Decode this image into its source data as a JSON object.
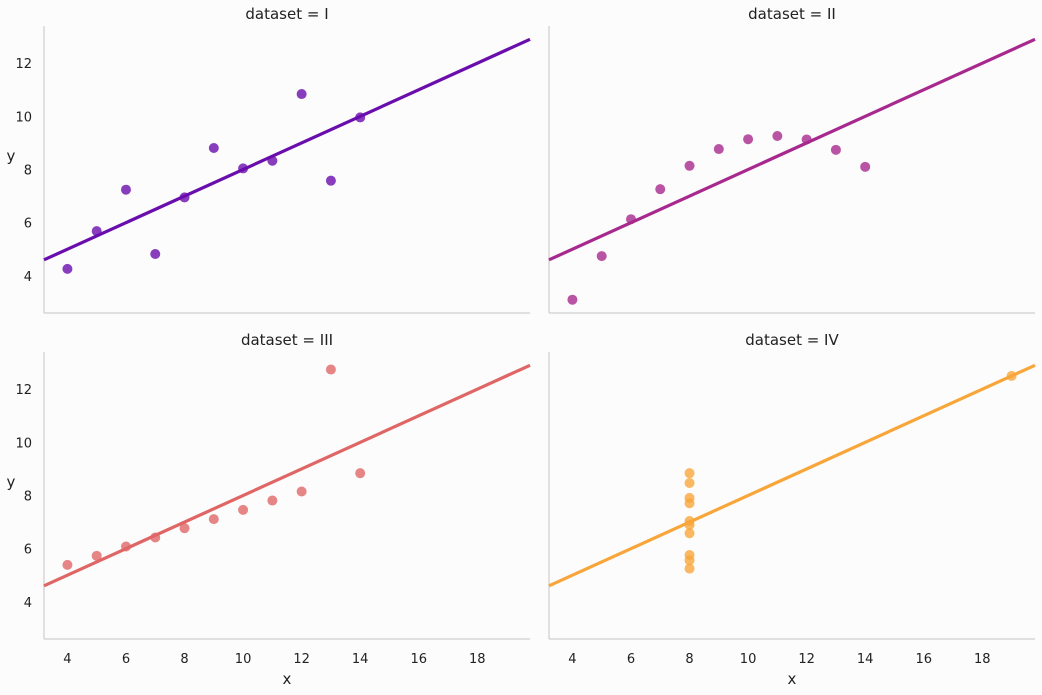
{
  "chart_data": {
    "type": "scatter",
    "layout": "2x2 facet grid with shared axes and linear regression line per panel",
    "xlabel": "x",
    "ylabel": "y",
    "xlim": [
      3.2,
      19.8
    ],
    "ylim": [
      2.6,
      13.4
    ],
    "xticks": [
      4,
      6,
      8,
      10,
      12,
      14,
      16,
      18
    ],
    "yticks": [
      4,
      6,
      8,
      10,
      12
    ],
    "grid": false,
    "regression": {
      "intercept": 3.0,
      "slope": 0.5
    },
    "panels": [
      {
        "title": "dataset = I",
        "color": "#6a0dad",
        "points": [
          [
            10,
            8.04
          ],
          [
            8,
            6.95
          ],
          [
            13,
            7.58
          ],
          [
            9,
            8.81
          ],
          [
            11,
            8.33
          ],
          [
            14,
            9.96
          ],
          [
            6,
            7.24
          ],
          [
            4,
            4.26
          ],
          [
            12,
            10.84
          ],
          [
            7,
            4.82
          ],
          [
            5,
            5.68
          ]
        ]
      },
      {
        "title": "dataset = II",
        "color": "#a8298e",
        "points": [
          [
            10,
            9.14
          ],
          [
            8,
            8.14
          ],
          [
            13,
            8.74
          ],
          [
            9,
            8.77
          ],
          [
            11,
            9.26
          ],
          [
            14,
            8.1
          ],
          [
            6,
            6.13
          ],
          [
            4,
            3.1
          ],
          [
            12,
            9.13
          ],
          [
            7,
            7.26
          ],
          [
            5,
            4.74
          ]
        ]
      },
      {
        "title": "dataset = III",
        "color": "#e06666",
        "points": [
          [
            10,
            7.46
          ],
          [
            8,
            6.77
          ],
          [
            13,
            12.74
          ],
          [
            9,
            7.11
          ],
          [
            11,
            7.81
          ],
          [
            14,
            8.84
          ],
          [
            6,
            6.08
          ],
          [
            4,
            5.39
          ],
          [
            12,
            8.15
          ],
          [
            7,
            6.42
          ],
          [
            5,
            5.73
          ]
        ]
      },
      {
        "title": "dataset = IV",
        "color": "#f8a63a",
        "points": [
          [
            8,
            6.58
          ],
          [
            8,
            5.76
          ],
          [
            8,
            7.71
          ],
          [
            8,
            8.84
          ],
          [
            8,
            8.47
          ],
          [
            8,
            7.04
          ],
          [
            8,
            5.25
          ],
          [
            19,
            12.5
          ],
          [
            8,
            5.56
          ],
          [
            8,
            7.91
          ],
          [
            8,
            6.89
          ]
        ]
      }
    ]
  }
}
